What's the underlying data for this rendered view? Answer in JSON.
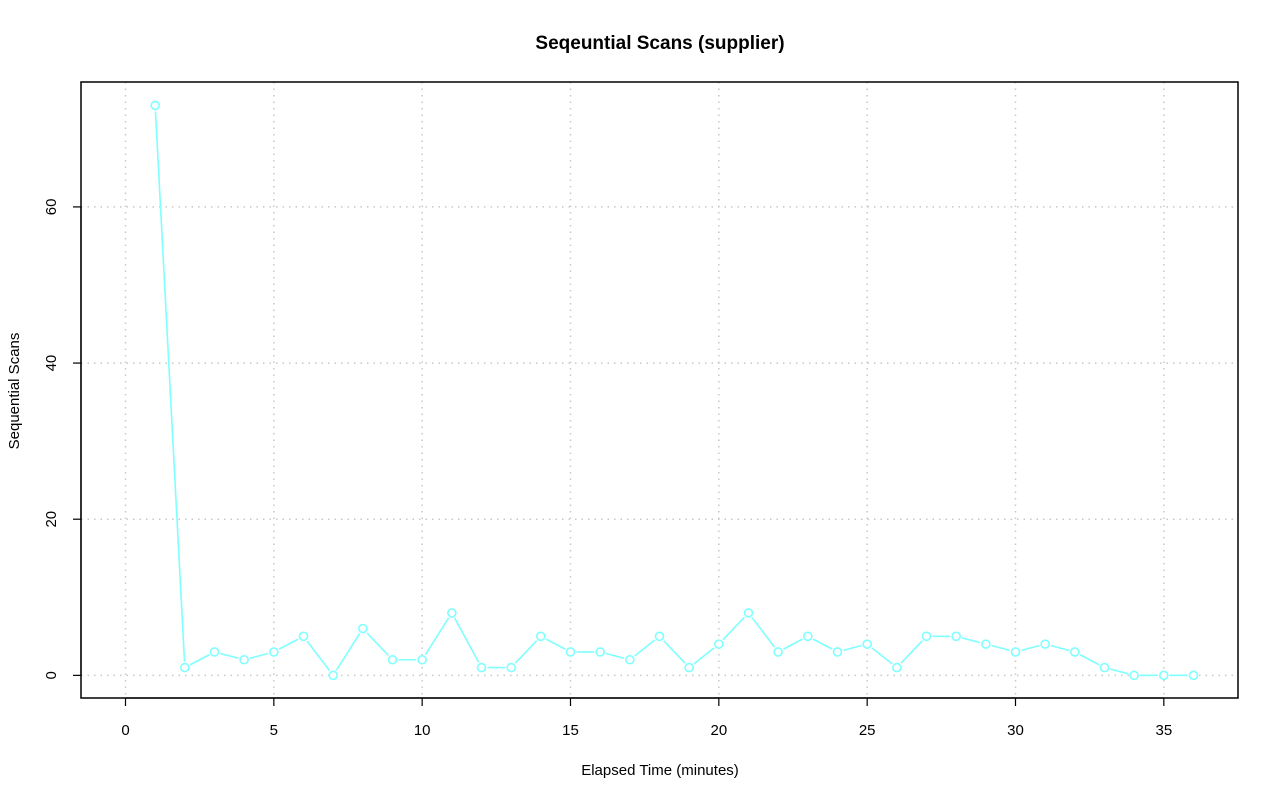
{
  "chart_data": {
    "type": "line",
    "title": "Seqeuntial Scans (supplier)",
    "xlabel": "Elapsed Time (minutes)",
    "ylabel": "Sequential Scans",
    "xlim": [
      -1.5,
      37.5
    ],
    "ylim": [
      -2.9,
      76
    ],
    "xticks": [
      0,
      5,
      10,
      15,
      20,
      25,
      30,
      35
    ],
    "yticks": [
      0,
      20,
      40,
      60
    ],
    "grid": true,
    "colors": {
      "series": "#7fffff",
      "grid": "#c8c8c8",
      "frame": "#000000"
    },
    "series": [
      {
        "x": [
          1,
          2,
          3,
          4,
          5,
          6,
          7,
          8,
          9,
          10,
          11,
          12,
          13,
          14,
          15,
          16,
          17,
          18,
          19,
          20,
          21,
          22,
          23,
          24,
          25,
          26,
          27,
          28,
          29,
          30,
          31,
          32,
          33,
          34,
          35,
          36
        ],
        "values": [
          73,
          1,
          3,
          2,
          3,
          5,
          0,
          6,
          2,
          2,
          8,
          1,
          1,
          5,
          3,
          3,
          2,
          5,
          1,
          4,
          8,
          3,
          5,
          3,
          4,
          1,
          5,
          5,
          4,
          3,
          4,
          3,
          1,
          0,
          0,
          0
        ]
      }
    ]
  }
}
